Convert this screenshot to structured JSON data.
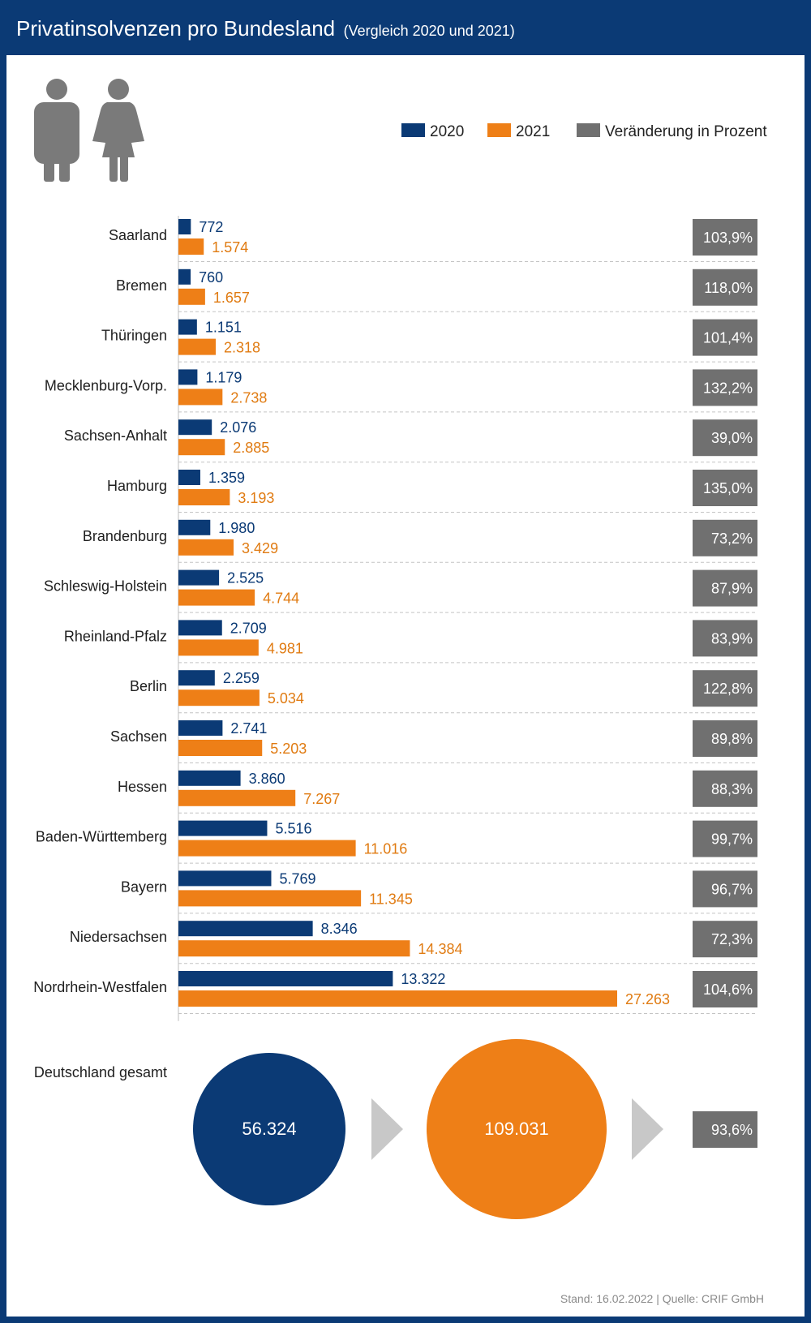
{
  "header": {
    "title": "Privatinsolvenzen pro Bundesland",
    "subtitle": "(Vergleich 2020 und 2021)"
  },
  "icons": [
    "man-icon",
    "woman-icon"
  ],
  "colors": {
    "y2020": "#0b3a75",
    "y2021": "#ee7f17",
    "change": "#707070",
    "arrow": "#c8c8c8",
    "frame": "#0b3a75"
  },
  "chart_data": {
    "type": "bar",
    "orientation": "horizontal",
    "legend_position": "top-right",
    "legend": [
      "2020",
      "2021",
      "Veränderung in Prozent"
    ],
    "categories": [
      "Saarland",
      "Bremen",
      "Thüringen",
      "Mecklenburg-Vorp.",
      "Sachsen-Anhalt",
      "Hamburg",
      "Brandenburg",
      "Schleswig-Holstein",
      "Rheinland-Pfalz",
      "Berlin",
      "Sachsen",
      "Hessen",
      "Baden-Württemberg",
      "Bayern",
      "Niedersachsen",
      "Nordrhein-Westfalen"
    ],
    "series": [
      {
        "name": "2020",
        "values": [
          772,
          760,
          1151,
          1179,
          2076,
          1359,
          1980,
          2525,
          2709,
          2259,
          2741,
          3860,
          5516,
          5769,
          8346,
          13322
        ],
        "labels": [
          "772",
          "760",
          "1.151",
          "1.179",
          "2.076",
          "1.359",
          "1.980",
          "2.525",
          "2.709",
          "2.259",
          "2.741",
          "3.860",
          "5.516",
          "5.769",
          "8.346",
          "13.322"
        ]
      },
      {
        "name": "2021",
        "values": [
          1574,
          1657,
          2318,
          2738,
          2885,
          3193,
          3429,
          4744,
          4981,
          5034,
          5203,
          7267,
          11016,
          11345,
          14384,
          27263
        ],
        "labels": [
          "1.574",
          "1.657",
          "2.318",
          "2.738",
          "2.885",
          "3.193",
          "3.429",
          "4.744",
          "4.981",
          "5.034",
          "5.203",
          "7.267",
          "11.016",
          "11.345",
          "14.384",
          "27.263"
        ]
      }
    ],
    "change_percent": [
      103.9,
      118.0,
      101.4,
      132.2,
      39.0,
      135.0,
      73.2,
      87.9,
      83.9,
      122.8,
      89.8,
      88.3,
      99.7,
      96.7,
      72.3,
      104.6
    ],
    "change_labels": [
      "103,9%",
      "118,0%",
      "101,4%",
      "132,2%",
      "39,0%",
      "135,0%",
      "73,2%",
      "87,9%",
      "83,9%",
      "122,8%",
      "89,8%",
      "88,3%",
      "99,7%",
      "96,7%",
      "72,3%",
      "104,6%"
    ],
    "total": {
      "label": "Deutschland gesamt",
      "value_2020": 56324,
      "value_2021": 109031,
      "label_2020": "56.324",
      "label_2021": "109.031",
      "change_percent": 93.6,
      "change_label": "93,6%"
    },
    "grid": false
  },
  "footer": "Stand: 16.02.2022 | Quelle: CRIF GmbH"
}
